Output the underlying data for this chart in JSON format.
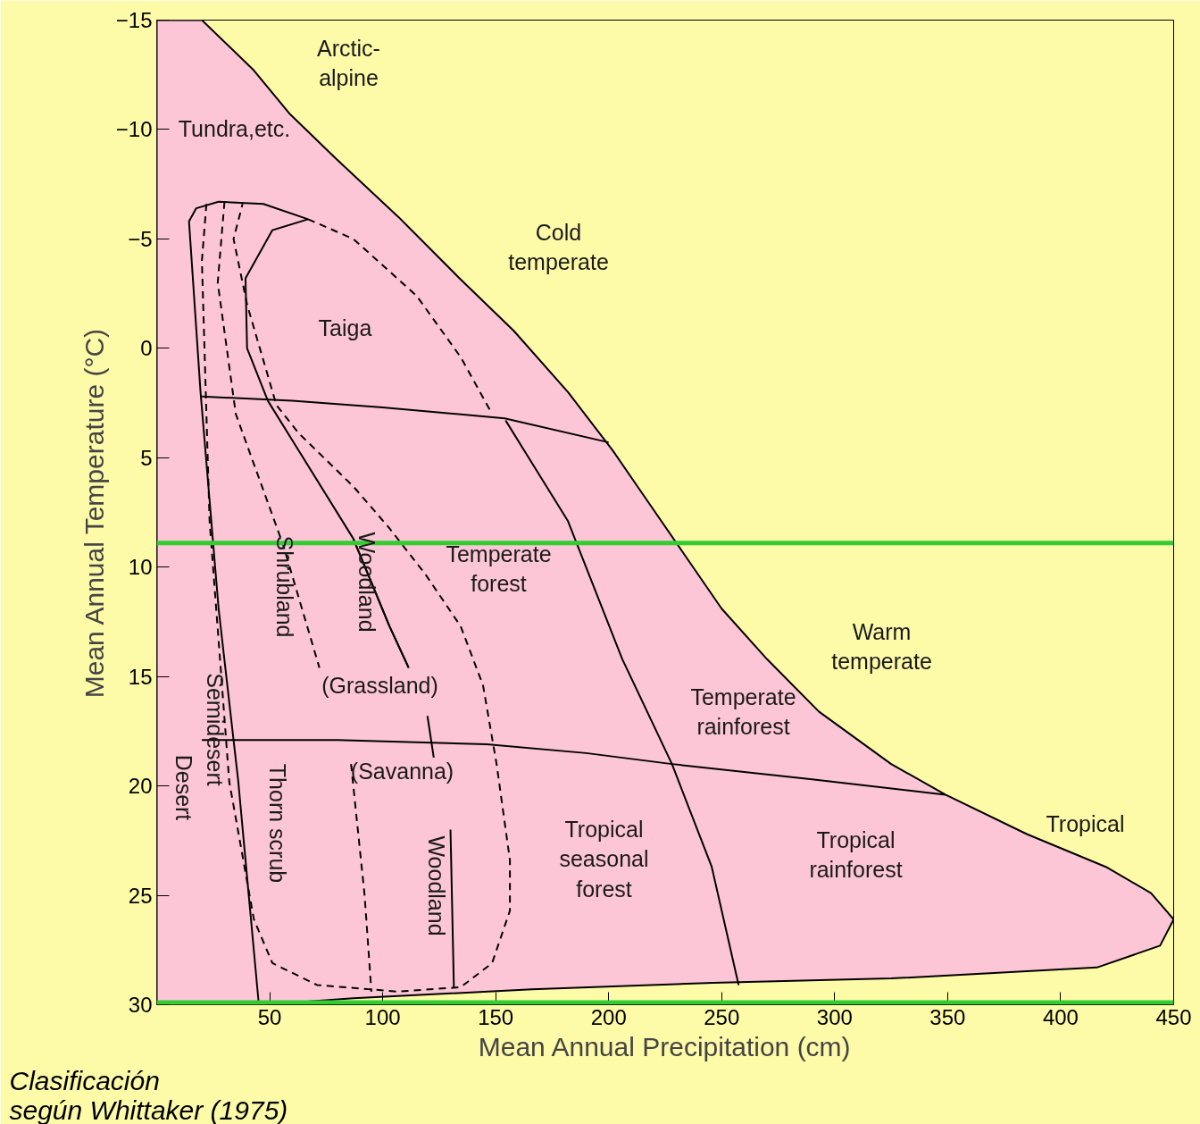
{
  "chart_data": {
    "type": "line",
    "xlabel": "Mean Annual Precipitation (cm)",
    "ylabel": "Mean Annual Temperature (°C)",
    "xlim": [
      0,
      450
    ],
    "ylim": [
      30,
      -15
    ],
    "xticks": [
      50,
      100,
      150,
      200,
      250,
      300,
      350,
      400,
      450
    ],
    "yticks": [
      -15,
      -10,
      -5,
      0,
      5,
      10,
      15,
      20,
      25,
      30
    ],
    "grid": false,
    "series": [
      {
        "type": "area",
        "color": "#fcc6d6",
        "x": [
          0,
          20,
          43,
          59,
          79,
          107,
          134,
          158,
          182,
          202,
          218,
          234,
          250,
          270,
          293,
          325,
          349,
          385,
          420,
          440,
          450,
          444,
          416,
          325,
          246,
          166,
          87,
          47,
          0
        ],
        "values": [
          -15,
          -15,
          -12.7,
          -10.7,
          -8.7,
          -6,
          -3.2,
          -0.8,
          2,
          4.7,
          7.1,
          9.5,
          11.9,
          14.2,
          16.6,
          19,
          20.4,
          22.2,
          23.7,
          24.9,
          26.1,
          27.3,
          28.3,
          28.8,
          29,
          29.3,
          29.7,
          30,
          30
        ]
      },
      {
        "color": "#000000",
        "line_style": "solid",
        "x": [
          67,
          47.2,
          27.4,
          17.5,
          14.3,
          19.4,
          27.4,
          36.1,
          45.2
        ],
        "values": [
          -5.9,
          -6.6,
          -6.7,
          -6.4,
          -5.8,
          2,
          11.9,
          19.8,
          30
        ]
      },
      {
        "color": "#000000",
        "line_style": "solid",
        "x": [
          67,
          51.2,
          39.3,
          40,
          49.2,
          63,
          87,
          103,
          111.5
        ],
        "values": [
          -5.9,
          -5.4,
          -3.2,
          0,
          2.4,
          4.7,
          8.7,
          12.7,
          14.6
        ]
      },
      {
        "color": "#000000",
        "line_style": "dashed",
        "x": [
          67,
          87,
          115,
          134.5,
          148.4
        ],
        "values": [
          -5.9,
          -5,
          -2.4,
          0.4,
          3
        ]
      },
      {
        "color": "#000000",
        "line_style": "dashed",
        "x": [
          22,
          20,
          23.4,
          32.1,
          43,
          51.2,
          71,
          106.7,
          134.5,
          148.4,
          156.3,
          156.3,
          150.4,
          144.4,
          134.5,
          118.7,
          102.8,
          86.9,
          63,
          53,
          40,
          34,
          38
        ],
        "values": [
          -6.6,
          -4,
          7.9,
          19.8,
          26.1,
          28.1,
          29.1,
          29.4,
          29.2,
          28.1,
          25.7,
          23.4,
          19,
          15.4,
          12.7,
          10.3,
          8.2,
          6.3,
          3.9,
          2.6,
          -2,
          -5,
          -6.6
        ]
      },
      {
        "color": "#000000",
        "line_style": "dashed",
        "x": [
          30,
          27,
          35,
          56,
          72,
          78,
          86,
          92,
          95
        ],
        "values": [
          -6.7,
          -3,
          3,
          9,
          14.6,
          null,
          19,
          25,
          29.4
        ]
      },
      {
        "color": "#000000",
        "line_style": "solid",
        "x": [
          87,
          103,
          111.5,
          115,
          119.8,
          122.6,
          127,
          130,
          131.5
        ],
        "values": [
          8.7,
          12.7,
          14.6,
          null,
          16.8,
          18.7,
          null,
          22,
          29.2
        ]
      },
      {
        "color": "#000000",
        "line_style": "solid",
        "x": [
          20,
          60,
          100,
          154,
          200
        ],
        "values": [
          2.2,
          2.4,
          2.7,
          3.2,
          4.3
        ]
      },
      {
        "color": "#000000",
        "line_style": "solid",
        "x": [
          20,
          80,
          146,
          190,
          228,
          290,
          349
        ],
        "values": [
          17.9,
          17.9,
          18.1,
          18.5,
          19,
          19.7,
          20.4
        ]
      },
      {
        "color": "#000000",
        "line_style": "solid",
        "x": [
          154.4,
          182,
          206,
          228,
          245.6,
          257.5
        ],
        "values": [
          3.3,
          7.9,
          14.2,
          19,
          23.7,
          29.1
        ]
      }
    ],
    "ref_lines": [
      {
        "axis": "y",
        "value": 8.9,
        "color": "#33cc33"
      },
      {
        "axis": "y",
        "value": 29.9,
        "color": "#33cc33"
      }
    ],
    "annotations": [
      "Arctic-\nalpine",
      "Tundra,etc.",
      "Cold\ntemperate",
      "Taiga",
      "Temperate\nforest",
      "Shrubland",
      "Woodland",
      "Warm\ntemperate",
      "Temperate\nrainforest",
      "(Grassland)",
      "(Savanna)",
      "Semidesert",
      "Desert",
      "Thorn scrub",
      "Woodland",
      "Tropical\nseasonal\nforest",
      "Tropical\nrainforest",
      "Tropical",
      "Clasificación\nsegún Whittaker (1975)"
    ]
  }
}
